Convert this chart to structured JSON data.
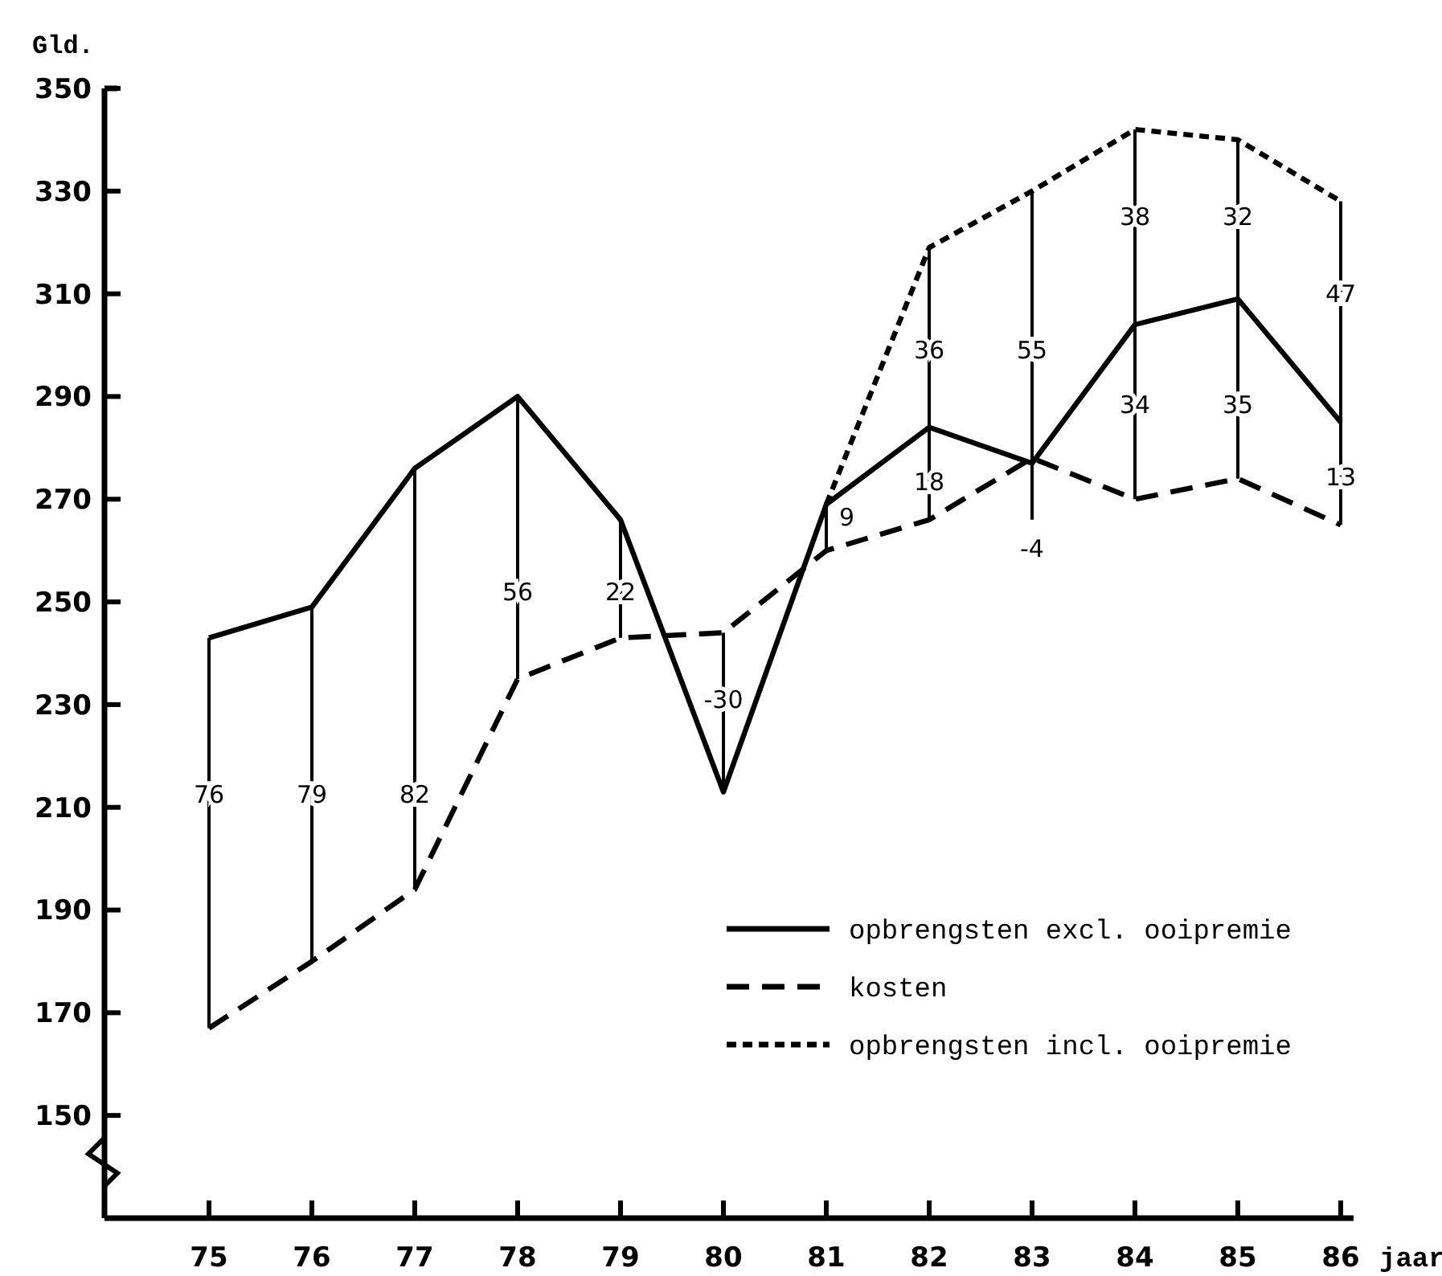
{
  "chart_data": {
    "type": "line",
    "ylabel": "Gld.",
    "xlabel": "jaar",
    "categories": [
      "75",
      "76",
      "77",
      "78",
      "79",
      "80",
      "81",
      "82",
      "83",
      "84",
      "85",
      "86"
    ],
    "ylim": [
      130,
      350
    ],
    "yticks": [
      150,
      170,
      190,
      210,
      230,
      250,
      270,
      290,
      310,
      330,
      350
    ],
    "series": [
      {
        "name": "opbrengsten excl. ooipremie",
        "color": "#000000",
        "line_style": "solid",
        "values": [
          243,
          249,
          276,
          290,
          266,
          213,
          269,
          284,
          277,
          304,
          309,
          285
        ],
        "errors": [
          [
            167,
            243
          ],
          [
            180,
            249
          ],
          [
            194,
            276
          ],
          [
            235,
            290
          ],
          [
            243,
            266
          ],
          [
            213,
            244
          ],
          [
            260,
            269
          ],
          [
            266,
            319
          ],
          [
            266,
            330
          ],
          [
            270,
            342
          ],
          [
            274,
            340
          ],
          [
            265,
            328
          ]
        ]
      },
      {
        "name": "kosten",
        "color": "#000000",
        "line_style": "dashed",
        "values": [
          167,
          180,
          194,
          235,
          243,
          244,
          260,
          266,
          278,
          270,
          274,
          265
        ]
      },
      {
        "name": "opbrengsten incl. ooipremie",
        "color": "#000000",
        "line_style": "dotted",
        "values": [
          null,
          null,
          null,
          null,
          null,
          null,
          269,
          319,
          330,
          342,
          340,
          328
        ]
      }
    ],
    "annotations": [
      {
        "text": "76",
        "x": "75",
        "y": 212.5
      },
      {
        "text": "79",
        "x": "76",
        "y": 212.5
      },
      {
        "text": "82",
        "x": "77",
        "y": 212.5
      },
      {
        "text": "56",
        "x": "78",
        "y": 252
      },
      {
        "text": "22",
        "x": "79",
        "y": 252
      },
      {
        "text": "-30",
        "x": "80",
        "y": 231
      },
      {
        "text": "9",
        "x": "81",
        "y": 266.5
      },
      {
        "text": "36",
        "x": "82",
        "y": 299
      },
      {
        "text": "18",
        "x": "82",
        "y": 273.4
      },
      {
        "text": "55",
        "x": "83",
        "y": 299
      },
      {
        "text": "-4",
        "x": "83",
        "y": 266
      },
      {
        "text": "38",
        "x": "84",
        "y": 325
      },
      {
        "text": "34",
        "x": "84",
        "y": 288.4
      },
      {
        "text": "32",
        "x": "85",
        "y": 325
      },
      {
        "text": "35",
        "x": "85",
        "y": 288.4
      },
      {
        "text": "47",
        "x": "86",
        "y": 310
      },
      {
        "text": "13",
        "x": "86",
        "y": 274.4
      }
    ],
    "legend": "bottom right",
    "grid": false,
    "marker": "none"
  }
}
